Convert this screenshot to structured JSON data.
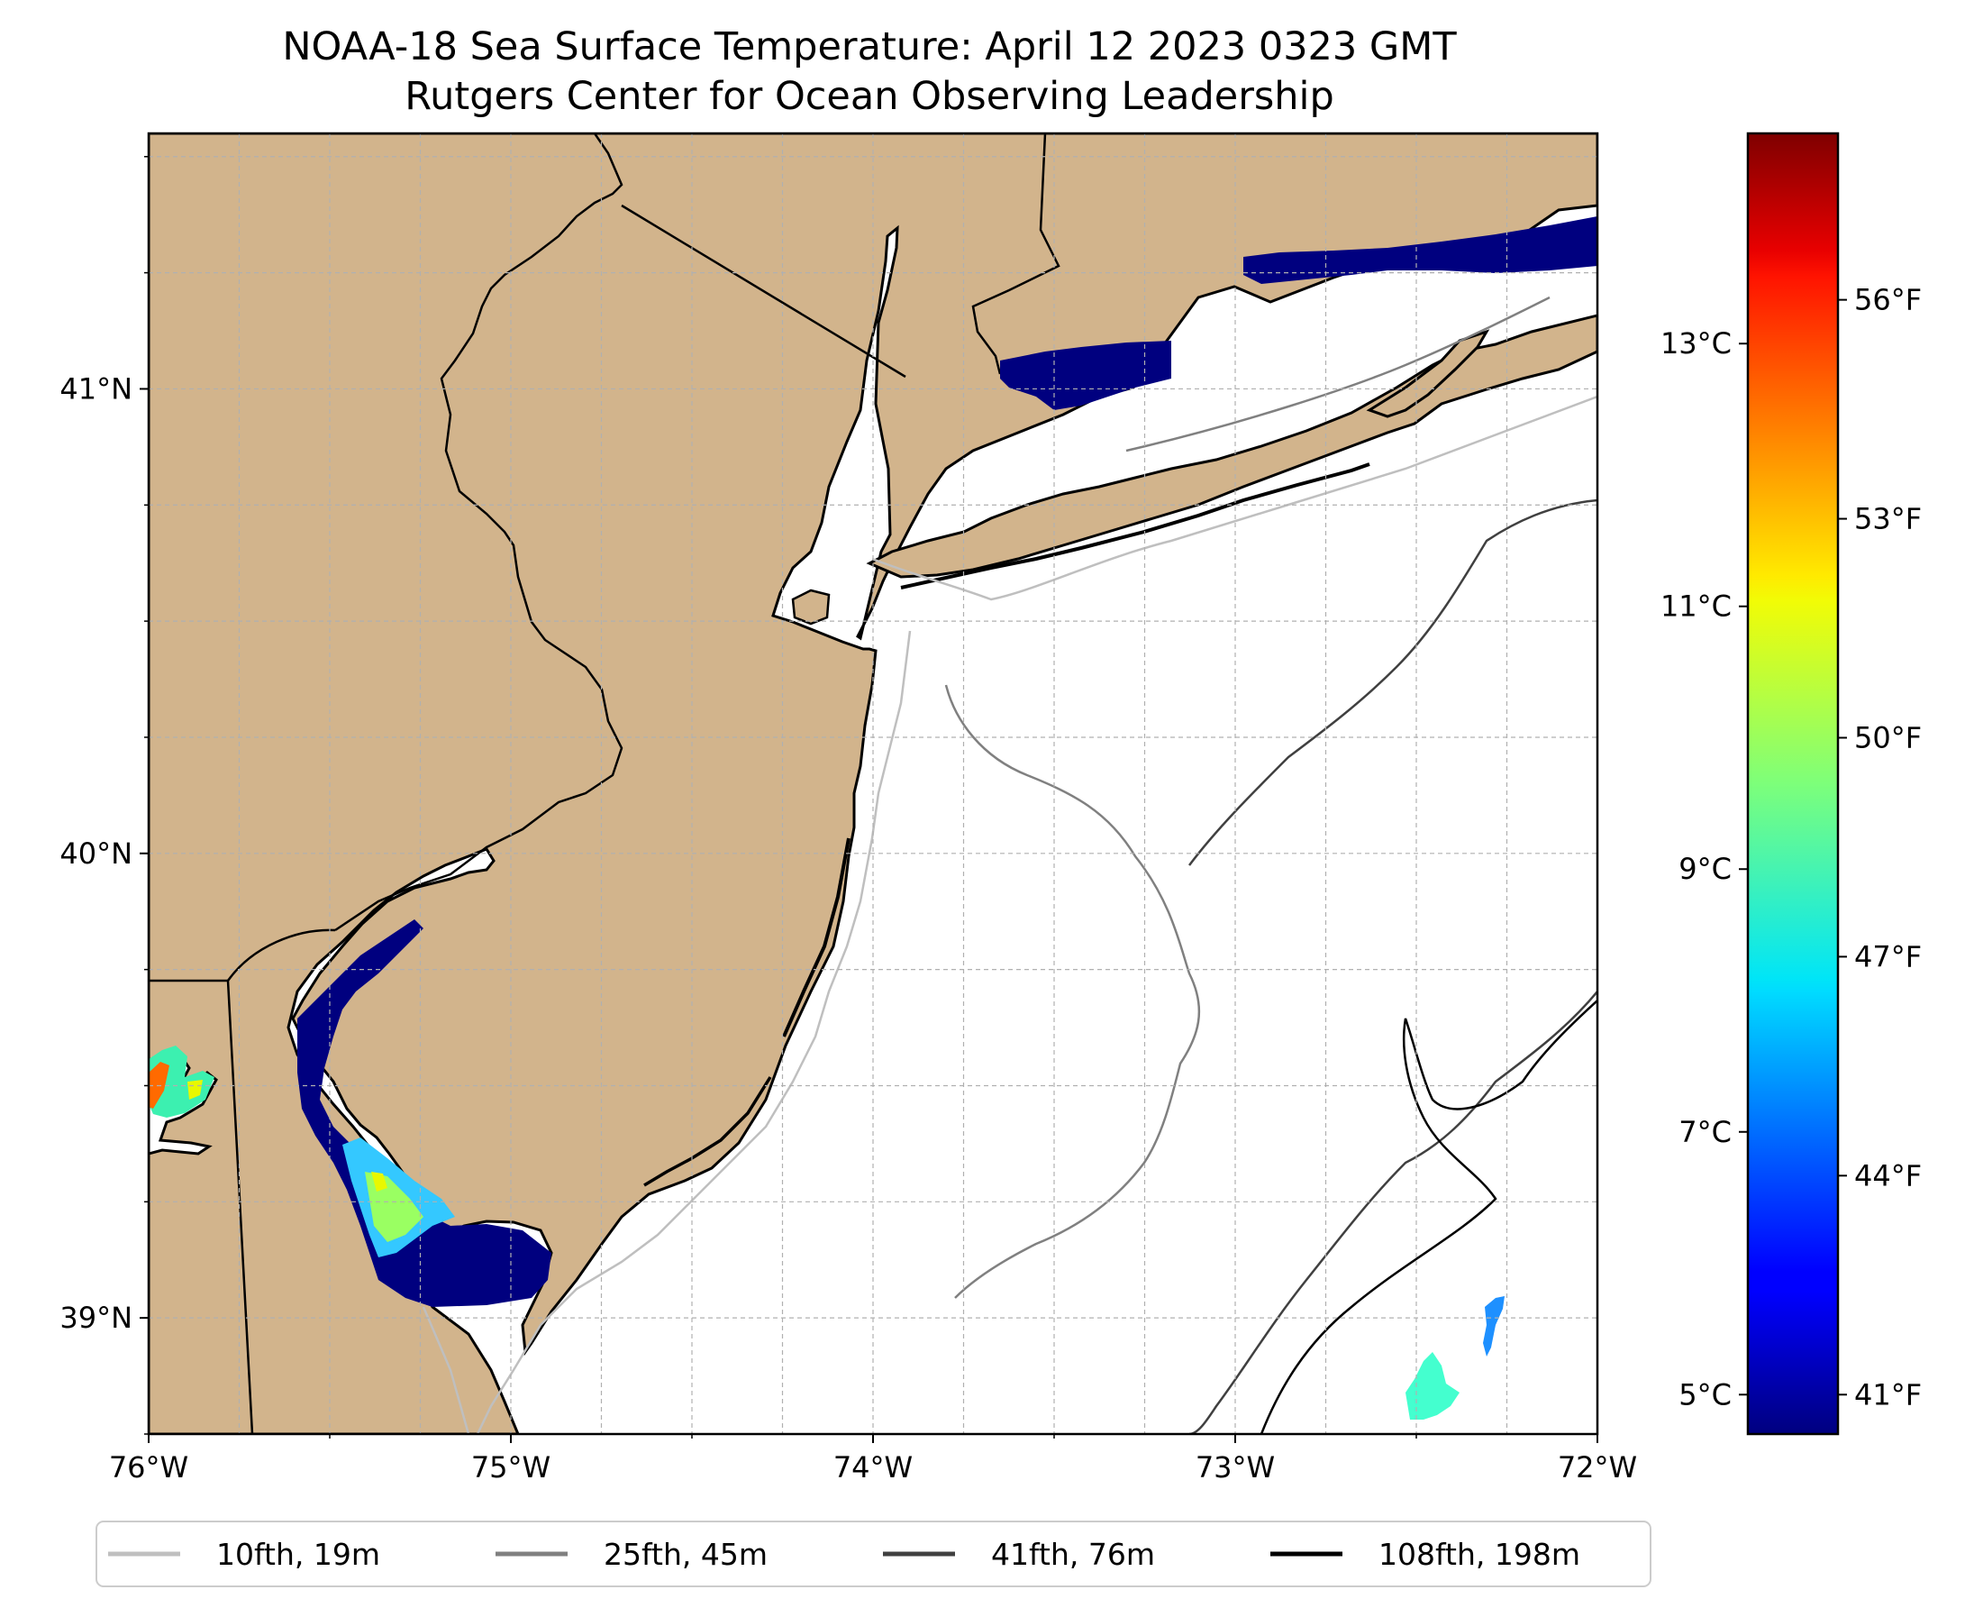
{
  "map": {
    "title_line1": "NOAA-18 Sea Surface Temperature: April 12 2023 0323 GMT",
    "title_line2": "Rutgers Center for Ocean Observing Leadership",
    "extent": {
      "lon_min": -76.0,
      "lon_max": -72.0,
      "lat_min": 38.75,
      "lat_max": 41.55
    },
    "lon_ticks": [
      {
        "value": -76,
        "label": "76°W"
      },
      {
        "value": -75,
        "label": "75°W"
      },
      {
        "value": -74,
        "label": "74°W"
      },
      {
        "value": -73,
        "label": "73°W"
      },
      {
        "value": -72,
        "label": "72°W"
      }
    ],
    "lat_ticks": [
      {
        "value": 41,
        "label": "41°N"
      },
      {
        "value": 40,
        "label": "40°N"
      },
      {
        "value": 39,
        "label": "39°N"
      }
    ],
    "gridlines": "dashed every 0.25°",
    "colors": {
      "land": "#d2b48c",
      "ocean": "#ffffff",
      "coast": "#000000",
      "grid": "#b0b0b0"
    },
    "sst_regions": [
      {
        "area": "Long Island Sound",
        "temperature": "≈41°F (5°C)"
      },
      {
        "area": "Delaware Bay",
        "temperature": "41–50°F (5–10°C)"
      },
      {
        "area": "Chesapeake Bay (upper)",
        "temperature": "47–56°F (8–13°C)"
      },
      {
        "area": "Offshore patch near 72.5°W, 38.9°N",
        "temperature": "≈47°F (8°C)"
      }
    ]
  },
  "colorbar": {
    "colormap": "jet",
    "celsius_min": 4.7,
    "celsius_max": 14.6,
    "celsius_ticks": [
      {
        "value": 5,
        "label": "5°C"
      },
      {
        "value": 7,
        "label": "7°C"
      },
      {
        "value": 9,
        "label": "9°C"
      },
      {
        "value": 11,
        "label": "11°C"
      },
      {
        "value": 13,
        "label": "13°C"
      }
    ],
    "fahrenheit_ticks": [
      {
        "value": 41,
        "label": "41°F"
      },
      {
        "value": 44,
        "label": "44°F"
      },
      {
        "value": 47,
        "label": "47°F"
      },
      {
        "value": 50,
        "label": "50°F"
      },
      {
        "value": 53,
        "label": "53°F"
      },
      {
        "value": 56,
        "label": "56°F"
      }
    ]
  },
  "legend": {
    "items": [
      {
        "label": "10fth, 19m",
        "color": "#bfbfbf"
      },
      {
        "label": "25fth, 45m",
        "color": "#808080"
      },
      {
        "label": "41fth, 76m",
        "color": "#404040"
      },
      {
        "label": "108fth, 198m",
        "color": "#000000"
      }
    ]
  }
}
